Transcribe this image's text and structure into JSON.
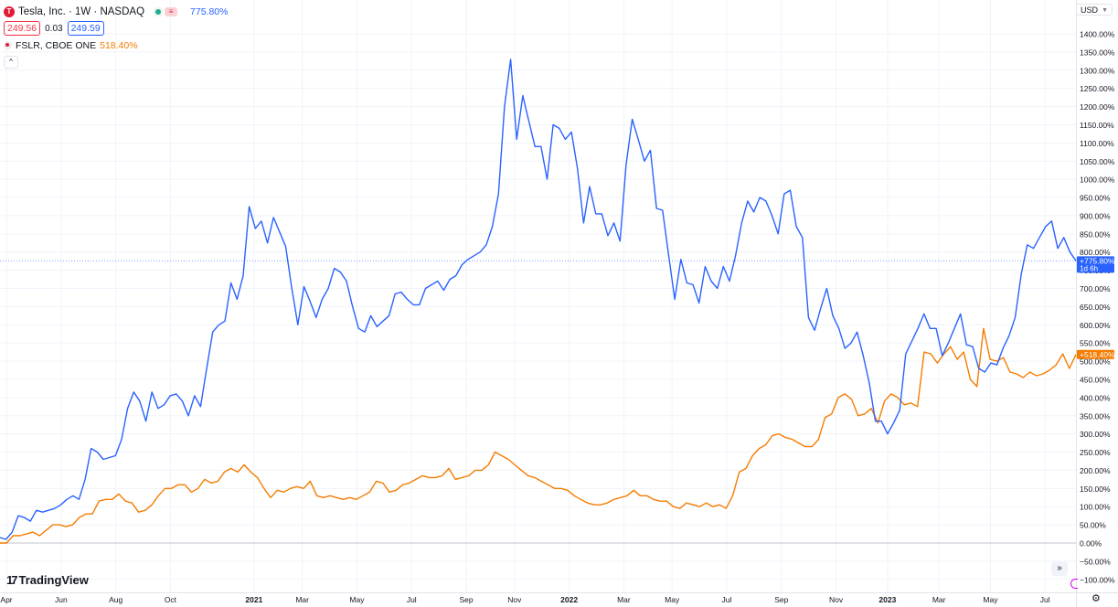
{
  "legend": {
    "main_title": "Tesla, Inc. · 1W · NASDAQ",
    "main_logo_letter": "T",
    "main_change": "775.80%",
    "bid": "249.56",
    "spread": "0.03",
    "ask": "249.59",
    "compare_title": "FSLR, CBOE ONE",
    "compare_change": "518.40%",
    "collapse_glyph": "^"
  },
  "currency": {
    "label": "USD"
  },
  "brand": {
    "name": "TradingView",
    "mark": "17"
  },
  "icons": {
    "scroll": "double-chevron-right-icon",
    "settings": "gear-icon"
  },
  "colors": {
    "tsla": "#2962ff",
    "fslr": "#f57c00",
    "grid": "#f0f3fa",
    "zero_line": "#c2c6d0"
  },
  "chart_data": {
    "type": "line",
    "y_unit": "%",
    "ylim": [
      -125,
      1450
    ],
    "y_ticks": [
      "1400.00%",
      "1350.00%",
      "1300.00%",
      "1250.00%",
      "1200.00%",
      "1150.00%",
      "1100.00%",
      "1050.00%",
      "1000.00%",
      "950.00%",
      "900.00%",
      "850.00%",
      "800.00%",
      "750.00%",
      "700.00%",
      "650.00%",
      "600.00%",
      "550.00%",
      "500.00%",
      "450.00%",
      "400.00%",
      "350.00%",
      "300.00%",
      "250.00%",
      "200.00%",
      "150.00%",
      "100.00%",
      "50.00%",
      "0.00%",
      "−50.00%",
      "−100.00%"
    ],
    "y_tick_values": [
      1400,
      1350,
      1300,
      1250,
      1200,
      1150,
      1100,
      1050,
      1000,
      950,
      900,
      850,
      800,
      750,
      700,
      650,
      600,
      550,
      500,
      450,
      400,
      350,
      300,
      250,
      200,
      150,
      100,
      50,
      0,
      -50,
      -100
    ],
    "x_ticks": [
      {
        "label": "Apr",
        "week": 1,
        "bold": false
      },
      {
        "label": "Jun",
        "week": 9.5,
        "bold": false
      },
      {
        "label": "Aug",
        "week": 18,
        "bold": false
      },
      {
        "label": "Oct",
        "week": 26.5,
        "bold": false
      },
      {
        "label": "2021",
        "week": 39.5,
        "bold": true
      },
      {
        "label": "Mar",
        "week": 47,
        "bold": false
      },
      {
        "label": "May",
        "week": 55.5,
        "bold": false
      },
      {
        "label": "Jul",
        "week": 64,
        "bold": false
      },
      {
        "label": "Sep",
        "week": 72.5,
        "bold": false
      },
      {
        "label": "Nov",
        "week": 80,
        "bold": false
      },
      {
        "label": "2022",
        "week": 88.5,
        "bold": true
      },
      {
        "label": "Mar",
        "week": 97,
        "bold": false
      },
      {
        "label": "May",
        "week": 104.5,
        "bold": false
      },
      {
        "label": "Jul",
        "week": 113,
        "bold": false
      },
      {
        "label": "Sep",
        "week": 121.5,
        "bold": false
      },
      {
        "label": "Nov",
        "week": 130,
        "bold": false
      },
      {
        "label": "2023",
        "week": 138,
        "bold": true
      },
      {
        "label": "Mar",
        "week": 146,
        "bold": false
      },
      {
        "label": "May",
        "week": 154,
        "bold": false
      },
      {
        "label": "Jul",
        "week": 162.5,
        "bold": false
      }
    ],
    "x_range": [
      0,
      167.3
    ],
    "series": [
      {
        "name": "Tesla, Inc.",
        "color": "#2962ff",
        "last_label": "+775.80%",
        "countdown": "1d 6h",
        "values": [
          15,
          10,
          30,
          75,
          70,
          60,
          90,
          85,
          90,
          95,
          105,
          120,
          130,
          120,
          175,
          260,
          250,
          230,
          235,
          240,
          285,
          370,
          415,
          390,
          335,
          415,
          370,
          380,
          405,
          410,
          390,
          350,
          405,
          375,
          480,
          580,
          600,
          610,
          715,
          670,
          735,
          925,
          865,
          885,
          825,
          895,
          855,
          815,
          700,
          600,
          705,
          665,
          620,
          670,
          700,
          755,
          745,
          720,
          650,
          590,
          580,
          625,
          595,
          610,
          625,
          685,
          690,
          670,
          655,
          655,
          700,
          710,
          720,
          695,
          725,
          735,
          765,
          780,
          790,
          800,
          820,
          870,
          960,
          1200,
          1330,
          1110,
          1230,
          1160,
          1090,
          1090,
          1000,
          1150,
          1140,
          1110,
          1130,
          1030,
          880,
          980,
          905,
          905,
          845,
          880,
          830,
          1040,
          1165,
          1110,
          1050,
          1080,
          920,
          915,
          790,
          670,
          780,
          715,
          710,
          660,
          760,
          720,
          700,
          760,
          720,
          790,
          880,
          940,
          910,
          950,
          940,
          900,
          850,
          960,
          970,
          870,
          840,
          620,
          585,
          645,
          700,
          625,
          590,
          535,
          550,
          580,
          515,
          440,
          335,
          335,
          300,
          330,
          365,
          520,
          555,
          590,
          630,
          590,
          590,
          515,
          550,
          590,
          630,
          545,
          540,
          480,
          470,
          495,
          490,
          535,
          570,
          620,
          740,
          820,
          810,
          840,
          870,
          885,
          810,
          840,
          800,
          775.8
        ]
      },
      {
        "name": "FSLR, CBOE ONE",
        "color": "#f57c00",
        "last_label": "+518.40%",
        "values": [
          0,
          0,
          20,
          20,
          25,
          30,
          20,
          35,
          50,
          50,
          45,
          50,
          70,
          80,
          80,
          115,
          120,
          120,
          135,
          115,
          110,
          85,
          90,
          105,
          130,
          150,
          150,
          160,
          160,
          140,
          150,
          175,
          165,
          170,
          195,
          205,
          195,
          215,
          195,
          180,
          150,
          125,
          145,
          140,
          150,
          155,
          150,
          170,
          130,
          125,
          130,
          125,
          120,
          125,
          120,
          130,
          140,
          170,
          165,
          140,
          145,
          160,
          165,
          175,
          185,
          180,
          180,
          185,
          205,
          175,
          180,
          185,
          200,
          200,
          215,
          250,
          240,
          230,
          215,
          200,
          185,
          180,
          170,
          160,
          150,
          150,
          145,
          130,
          120,
          110,
          105,
          105,
          110,
          120,
          125,
          130,
          145,
          130,
          130,
          120,
          115,
          115,
          100,
          95,
          110,
          105,
          100,
          110,
          100,
          105,
          95,
          130,
          195,
          205,
          240,
          260,
          270,
          295,
          300,
          290,
          285,
          275,
          265,
          265,
          285,
          345,
          355,
          400,
          410,
          395,
          350,
          355,
          370,
          330,
          390,
          410,
          400,
          380,
          385,
          375,
          525,
          520,
          495,
          520,
          540,
          505,
          525,
          450,
          430,
          590,
          505,
          500,
          510,
          470,
          465,
          455,
          470,
          460,
          465,
          475,
          490,
          520,
          480,
          518.4
        ]
      }
    ]
  }
}
